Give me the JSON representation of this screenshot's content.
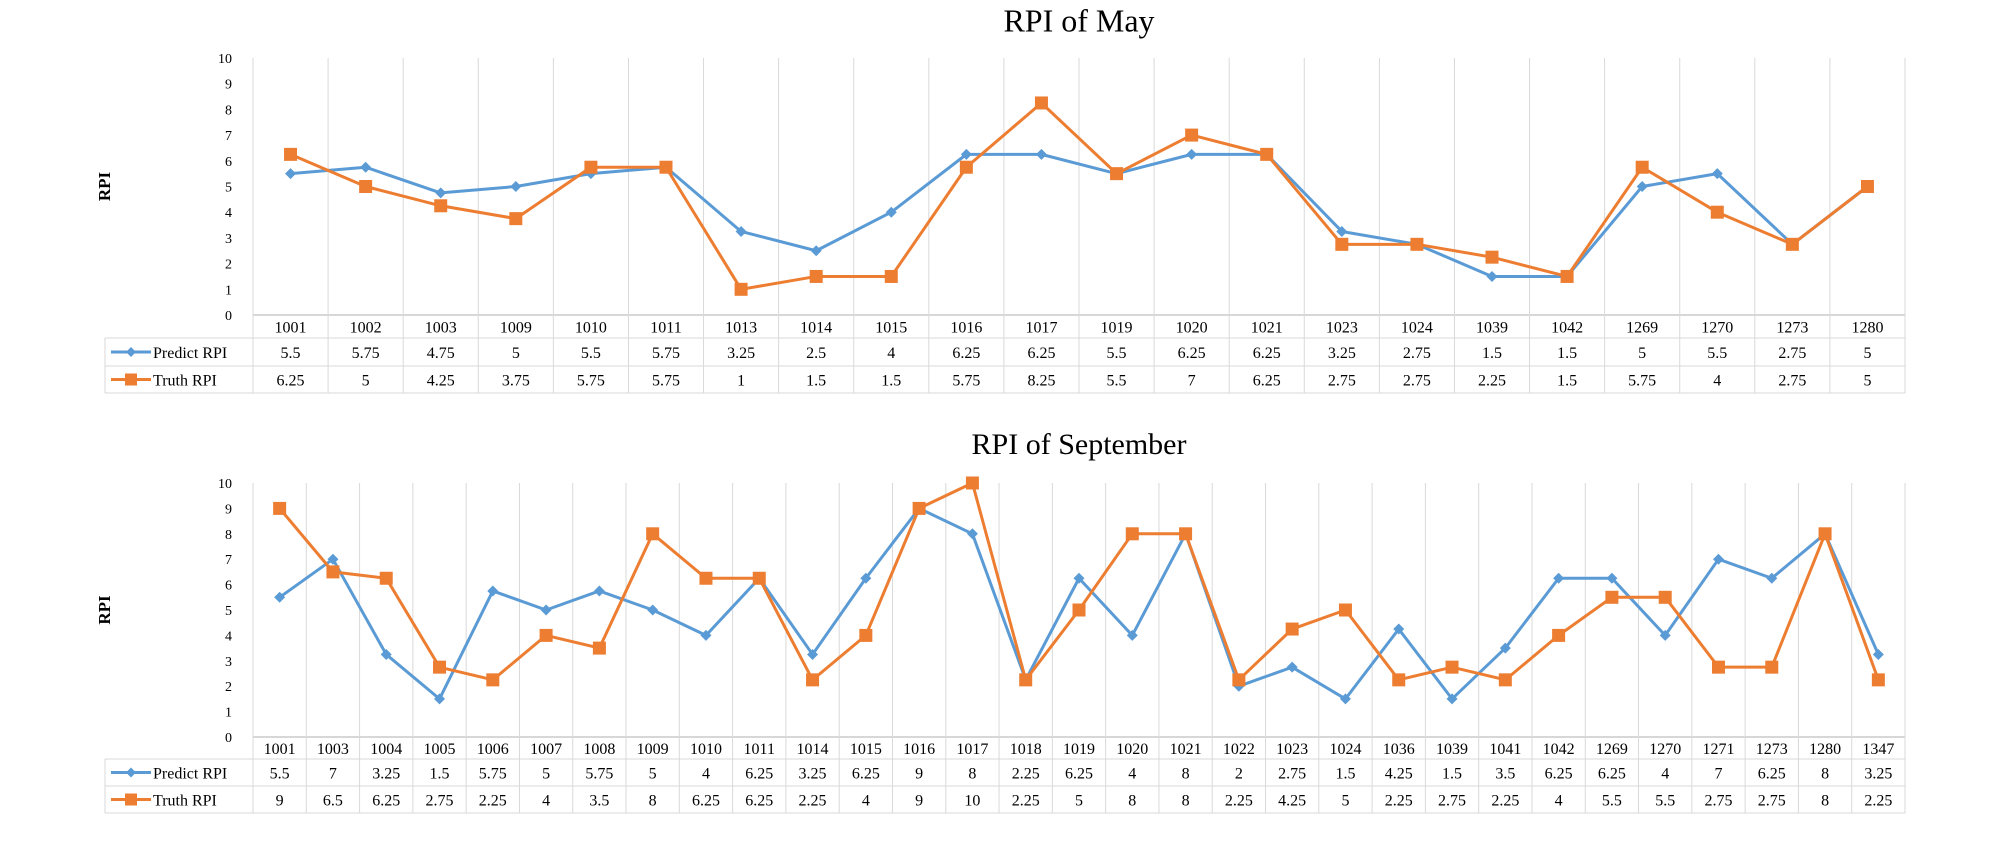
{
  "colors": {
    "predict": "#5B9BD5",
    "truth": "#ED7D31",
    "grid": "#D9D9D9",
    "text": "#000000"
  },
  "chart_data": [
    {
      "type": "line",
      "title": "RPI of May",
      "ylabel": "RPI",
      "xlabel": "",
      "ylim": [
        0,
        10
      ],
      "yticks": [
        "0",
        "1",
        "2",
        "3",
        "4",
        "5",
        "6",
        "7",
        "8",
        "9",
        "10"
      ],
      "grid": true,
      "legend": "data-table",
      "categories": [
        "1001",
        "1002",
        "1003",
        "1009",
        "1010",
        "1011",
        "1013",
        "1014",
        "1015",
        "1016",
        "1017",
        "1019",
        "1020",
        "1021",
        "1023",
        "1024",
        "1039",
        "1042",
        "1269",
        "1270",
        "1273",
        "1280"
      ],
      "series": [
        {
          "name": "Predict RPI",
          "marker": "diamond",
          "values": [
            5.5,
            5.75,
            4.75,
            5,
            5.5,
            5.75,
            3.25,
            2.5,
            4,
            6.25,
            6.25,
            5.5,
            6.25,
            6.25,
            3.25,
            2.75,
            1.5,
            1.5,
            5,
            5.5,
            2.75,
            5
          ],
          "labels": [
            "5.5",
            "5.75",
            "4.75",
            "5",
            "5.5",
            "5.75",
            "3.25",
            "2.5",
            "4",
            "6.25",
            "6.25",
            "5.5",
            "6.25",
            "6.25",
            "3.25",
            "2.75",
            "1.5",
            "1.5",
            "5",
            "5.5",
            "2.75",
            "5"
          ]
        },
        {
          "name": "Truth RPI",
          "marker": "square",
          "values": [
            6.25,
            5,
            4.25,
            3.75,
            5.75,
            5.75,
            1,
            1.5,
            1.5,
            5.75,
            8.25,
            5.5,
            7,
            6.25,
            2.75,
            2.75,
            2.25,
            1.5,
            5.75,
            4,
            2.75,
            5
          ],
          "labels": [
            "6.25",
            "5",
            "4.25",
            "3.75",
            "5.75",
            "5.75",
            "1",
            "1.5",
            "1.5",
            "5.75",
            "8.25",
            "5.5",
            "7",
            "6.25",
            "2.75",
            "2.75",
            "2.25",
            "1.5",
            "5.75",
            "4",
            "2.75",
            "5"
          ]
        }
      ]
    },
    {
      "type": "line",
      "title": "RPI of September",
      "ylabel": "RPI",
      "xlabel": "",
      "ylim": [
        0,
        10
      ],
      "yticks": [
        "0",
        "1",
        "2",
        "3",
        "4",
        "5",
        "6",
        "7",
        "8",
        "9",
        "10"
      ],
      "grid": true,
      "legend": "data-table",
      "categories": [
        "1001",
        "1003",
        "1004",
        "1005",
        "1006",
        "1007",
        "1008",
        "1009",
        "1010",
        "1011",
        "1014",
        "1015",
        "1016",
        "1017",
        "1018",
        "1019",
        "1020",
        "1021",
        "1022",
        "1023",
        "1024",
        "1036",
        "1039",
        "1041",
        "1042",
        "1269",
        "1270",
        "1271",
        "1273",
        "1280",
        "1347"
      ],
      "series": [
        {
          "name": "Predict RPI",
          "marker": "diamond",
          "values": [
            5.5,
            7,
            3.25,
            1.5,
            5.75,
            5,
            5.75,
            5,
            4,
            6.25,
            3.25,
            6.25,
            9,
            8,
            2.25,
            6.25,
            4,
            8,
            2,
            2.75,
            1.5,
            4.25,
            1.5,
            3.5,
            6.25,
            6.25,
            4,
            7,
            6.25,
            8,
            3.25
          ],
          "labels": [
            "5.5",
            "7",
            "3.25",
            "1.5",
            "5.75",
            "5",
            "5.75",
            "5",
            "4",
            "6.25",
            "3.25",
            "6.25",
            "9",
            "8",
            "2.25",
            "6.25",
            "4",
            "8",
            "2",
            "2.75",
            "1.5",
            "4.25",
            "1.5",
            "3.5",
            "6.25",
            "6.25",
            "4",
            "7",
            "6.25",
            "8",
            "3.25"
          ]
        },
        {
          "name": "Truth RPI",
          "marker": "square",
          "values": [
            9,
            6.5,
            6.25,
            2.75,
            2.25,
            4,
            3.5,
            8,
            6.25,
            6.25,
            2.25,
            4,
            9,
            10,
            2.25,
            5,
            8,
            8,
            2.25,
            4.25,
            5,
            2.25,
            2.75,
            2.25,
            4,
            5.5,
            5.5,
            2.75,
            2.75,
            8,
            2.25
          ],
          "labels": [
            "9",
            "6.5",
            "6.25",
            "2.75",
            "2.25",
            "4",
            "3.5",
            "8",
            "6.25",
            "6.25",
            "2.25",
            "4",
            "9",
            "10",
            "2.25",
            "5",
            "8",
            "8",
            "2.25",
            "4.25",
            "5",
            "2.25",
            "2.75",
            "2.25",
            "4",
            "5.5",
            "5.5",
            "2.75",
            "2.75",
            "8",
            "2.25"
          ]
        }
      ]
    }
  ]
}
